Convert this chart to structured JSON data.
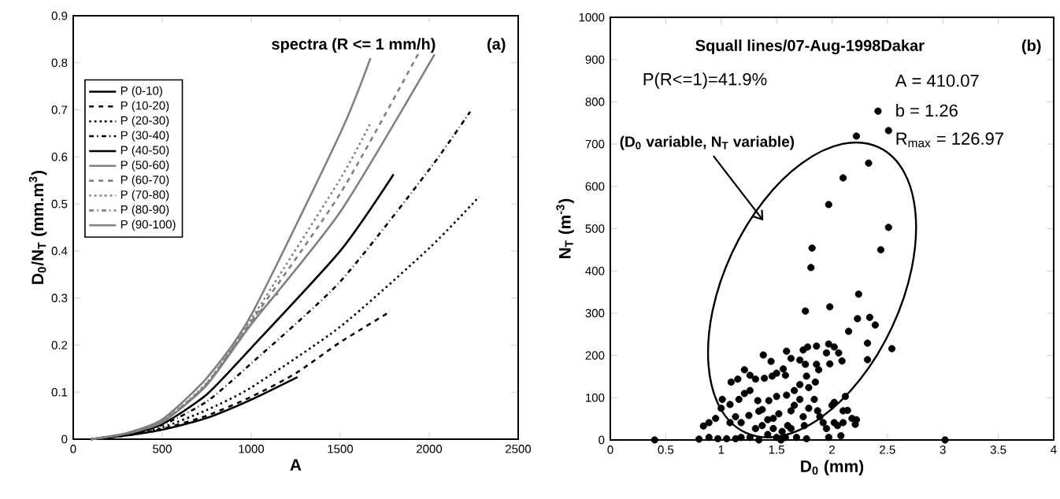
{
  "chart_data": [
    {
      "type": "line",
      "title": "spectra (R <= 1 mm/h)",
      "xlabel": "A",
      "ylabel": "D$_{0}$/N$_{T}$ (mm.m$^{3}$)",
      "xlim": [
        0,
        2500
      ],
      "ylim": [
        0,
        0.9
      ],
      "xticks": [
        0,
        500,
        1000,
        1500,
        2000,
        2500
      ],
      "yticks": [
        0,
        0.1,
        0.2,
        0.3,
        0.4,
        0.5,
        0.6,
        0.7,
        0.8,
        0.9
      ],
      "legend": "top left",
      "annotations": [
        "(a)"
      ],
      "series": [
        {
          "name": "P (0-10)",
          "color": "#000000",
          "line_style": "solid",
          "x": [
            100,
            300,
            500,
            750,
            1000,
            1260
          ],
          "values": [
            0,
            0.008,
            0.02,
            0.045,
            0.084,
            0.132
          ]
        },
        {
          "name": "P (10-20)",
          "color": "#000000",
          "line_style": "dashed",
          "x": [
            100,
            300,
            500,
            750,
            1000,
            1250,
            1500,
            1780
          ],
          "values": [
            0,
            0.008,
            0.022,
            0.05,
            0.09,
            0.14,
            0.206,
            0.271
          ]
        },
        {
          "name": "P (20-30)",
          "color": "#000000",
          "line_style": "dotted",
          "x": [
            100,
            300,
            500,
            750,
            1000,
            1500,
            2000,
            2280
          ],
          "values": [
            0,
            0.009,
            0.025,
            0.062,
            0.11,
            0.239,
            0.406,
            0.515
          ]
        },
        {
          "name": "P (30-40)",
          "color": "#000000",
          "line_style": "dashdot",
          "x": [
            100,
            300,
            500,
            750,
            1000,
            1500,
            2000,
            2230
          ],
          "values": [
            0,
            0.01,
            0.03,
            0.08,
            0.161,
            0.335,
            0.573,
            0.696
          ]
        },
        {
          "name": "P (40-50)",
          "color": "#000000",
          "line_style": "solid",
          "x": [
            100,
            300,
            500,
            750,
            1000,
            1500,
            1800
          ],
          "values": [
            0,
            0.01,
            0.032,
            0.095,
            0.194,
            0.4,
            0.563
          ]
        },
        {
          "name": "P (50-60)",
          "color": "#808080",
          "line_style": "solid",
          "x": [
            100,
            300,
            500,
            750,
            1000,
            1500,
            2030
          ],
          "values": [
            0,
            0.012,
            0.036,
            0.115,
            0.244,
            0.483,
            0.818
          ]
        },
        {
          "name": "P (60-70)",
          "color": "#808080",
          "line_style": "dashed",
          "x": [
            100,
            300,
            500,
            750,
            1000,
            1500,
            1940
          ],
          "values": [
            0,
            0.012,
            0.037,
            0.118,
            0.25,
            0.522,
            0.82
          ]
        },
        {
          "name": "P (70-80)",
          "color": "#808080",
          "line_style": "dotted",
          "x": [
            100,
            300,
            500,
            750,
            1000,
            1500,
            1670
          ],
          "values": [
            0,
            0.012,
            0.038,
            0.12,
            0.255,
            0.553,
            0.672
          ]
        },
        {
          "name": "P (80-90)",
          "color": "#808080",
          "line_style": "dashdot",
          "x": [
            100,
            300,
            500,
            750,
            1000,
            1150
          ],
          "values": [
            0,
            0.012,
            0.037,
            0.117,
            0.25,
            0.31
          ]
        },
        {
          "name": "P (90-100)",
          "color": "#808080",
          "line_style": "solid",
          "x": [
            100,
            300,
            500,
            750,
            1000,
            1500,
            1670
          ],
          "values": [
            0,
            0.013,
            0.042,
            0.13,
            0.264,
            0.65,
            0.81
          ]
        }
      ]
    },
    {
      "type": "scatter",
      "title": "Squall lines/07-Aug-1998Dakar",
      "xlabel": "D$_{0}$ (mm)",
      "ylabel": "N$_{T}$ (m$^{-3}$)",
      "xlim": [
        0,
        4
      ],
      "ylim": [
        0,
        1000
      ],
      "xticks": [
        0,
        0.5,
        1,
        1.5,
        2,
        2.5,
        3,
        3.5,
        4
      ],
      "yticks": [
        0,
        100,
        200,
        300,
        400,
        500,
        600,
        700,
        800,
        900,
        1000
      ],
      "marker": "circle",
      "color": "#000000",
      "annotations": [
        "(b)",
        "P(R<=1)=41.9%",
        "A = 410.07",
        "b = 1.26",
        "R$_{max}$ = 126.97",
        "(D$_{0}$ variable, N$_{T}$ variable)"
      ],
      "x": [
        2.415,
        2.51,
        2.22,
        2.33,
        2.1,
        1.97,
        2.51,
        1.82,
        2.44,
        1.81,
        1.76,
        1.98,
        2.24,
        2.23,
        2.34,
        2.39,
        2.15,
        2.32,
        2.54,
        2.32,
        3.02,
        0.4,
        1.38,
        1.45,
        1.21,
        1.09,
        1.15,
        1.26,
        1.31,
        1.39,
        1.46,
        1.5,
        1.56,
        1.58,
        1.59,
        1.63,
        1.71,
        1.74,
        1.78,
        1.86,
        1.76,
        1.86,
        1.88,
        1.97,
        2.02,
        2.06,
        2.09,
        1.95,
        1.98,
        1.77,
        1.85,
        1.71,
        1.79,
        1.66,
        1.59,
        1.5,
        1.43,
        1.33,
        1.26,
        1.21,
        1.16,
        1.08,
        1.01,
        1.0,
        0.95,
        0.89,
        0.84,
        0.8,
        0.89,
        0.97,
        1.05,
        1.08,
        1.13,
        1.18,
        1.18,
        1.25,
        1.26,
        1.34,
        1.34,
        1.31,
        1.37,
        1.42,
        1.42,
        1.47,
        1.5,
        1.52,
        1.58,
        1.6,
        1.63,
        1.66,
        1.68,
        1.71,
        1.74,
        1.75,
        1.77,
        1.79,
        1.84,
        1.87,
        1.89,
        1.92,
        1.95,
        1.97,
        2.0,
        2.02,
        2.05,
        2.08,
        2.1,
        2.12,
        2.1,
        2.14,
        2.18,
        2.21,
        2.22,
        2.02,
        1.37,
        1.47,
        1.55,
        1.63,
        1.54,
        1.13
      ],
      "values": [
        778,
        732,
        719,
        655,
        620,
        557,
        503,
        454,
        450,
        408,
        305,
        315,
        345,
        287,
        290,
        272,
        257,
        229,
        216,
        190,
        0,
        0,
        201,
        186,
        166,
        137,
        144,
        153,
        144,
        146,
        151,
        158,
        168,
        153,
        210,
        193,
        189,
        213,
        220,
        222,
        179,
        179,
        166,
        227,
        220,
        206,
        187,
        206,
        180,
        151,
        137,
        131,
        124,
        117,
        106,
        103,
        93,
        93,
        117,
        110,
        96,
        84,
        96,
        75,
        51,
        41,
        33,
        2,
        6,
        3,
        3,
        41,
        55,
        41,
        6,
        58,
        6,
        68,
        0,
        27,
        34,
        48,
        13,
        27,
        6,
        62,
        6,
        34,
        69,
        82,
        6,
        96,
        55,
        34,
        3,
        75,
        96,
        69,
        55,
        41,
        27,
        6,
        82,
        89,
        34,
        10,
        69,
        103,
        41,
        70,
        51,
        37,
        48,
        41,
        72,
        51,
        20,
        27,
        0,
        3
      ]
    }
  ]
}
